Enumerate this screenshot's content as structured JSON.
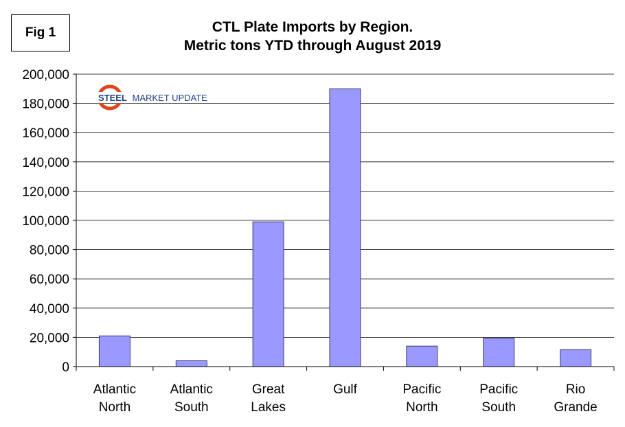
{
  "fig_label": "Fig 1",
  "logo": {
    "word1": "STEEL",
    "word2": "MARKET UPDATE",
    "colors": {
      "word1": "#1f3f86",
      "word2": "#1f3f86",
      "swoosh": "#e0461e"
    }
  },
  "colors": {
    "bar_fill": "#9999ff",
    "bar_stroke": "#3a3a6a",
    "grid": "#000000"
  },
  "chart_data": {
    "type": "bar",
    "title": [
      "CTL Plate Imports by Region.",
      "Metric tons YTD through August 2019"
    ],
    "categories": [
      [
        "Atlantic",
        "North"
      ],
      [
        "Atlantic",
        "South"
      ],
      [
        "Great",
        "Lakes"
      ],
      [
        "Gulf"
      ],
      [
        "Pacific",
        "North"
      ],
      [
        "Pacific",
        "South"
      ],
      [
        "Rio",
        "Grande"
      ]
    ],
    "values": [
      21000,
      4000,
      99000,
      190000,
      14000,
      19500,
      11500
    ],
    "ylim": [
      0,
      200000
    ],
    "yticks": [
      0,
      20000,
      40000,
      60000,
      80000,
      100000,
      120000,
      140000,
      160000,
      180000,
      200000
    ],
    "ytick_labels": [
      "0",
      "20,000",
      "40,000",
      "60,000",
      "80,000",
      "100,000",
      "120,000",
      "140,000",
      "160,000",
      "180,000",
      "200,000"
    ],
    "grid": true,
    "legend": "none"
  }
}
